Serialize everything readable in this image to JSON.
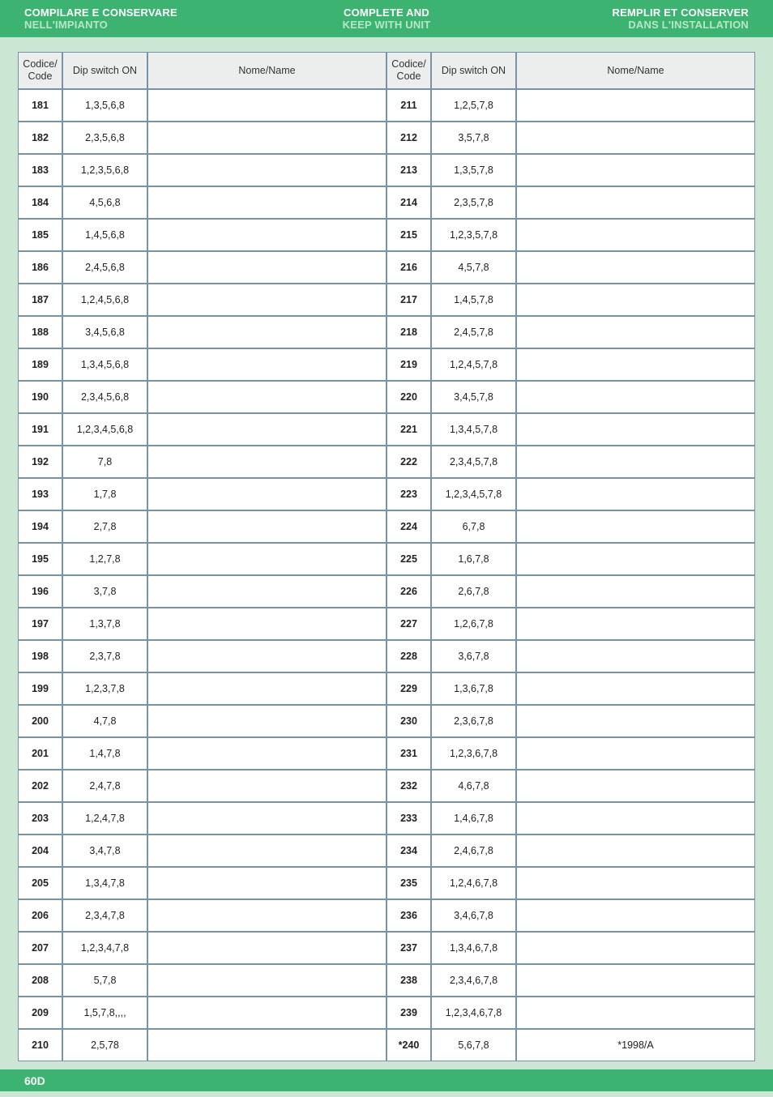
{
  "colors": {
    "page_bg": "#cbe6d3",
    "bar_bg": "#3cb371",
    "bar_text": "#ffffff",
    "bar_subtext": "#b8e6c8",
    "cell_border": "#7893a8",
    "header_bg": "#eceeee",
    "cell_bg": "#ffffff",
    "text": "#222222"
  },
  "header": {
    "left": {
      "line1": "COMPILARE E CONSERVARE",
      "line2": "NELL'IMPIANTO"
    },
    "center": {
      "line1": "COMPLETE AND",
      "line2": "KEEP WITH UNIT"
    },
    "right": {
      "line1": "REMPLIR ET CONSERVER",
      "line2": "DANS L'INSTALLATION"
    }
  },
  "columns": {
    "code": "Codice/\nCode",
    "dip": "Dip switch ON",
    "name": "Nome/Name"
  },
  "left_rows": [
    {
      "code": "181",
      "dip": "1,3,5,6,8",
      "name": ""
    },
    {
      "code": "182",
      "dip": "2,3,5,6,8",
      "name": ""
    },
    {
      "code": "183",
      "dip": "1,2,3,5,6,8",
      "name": ""
    },
    {
      "code": "184",
      "dip": "4,5,6,8",
      "name": ""
    },
    {
      "code": "185",
      "dip": "1,4,5,6,8",
      "name": ""
    },
    {
      "code": "186",
      "dip": "2,4,5,6,8",
      "name": ""
    },
    {
      "code": "187",
      "dip": "1,2,4,5,6,8",
      "name": ""
    },
    {
      "code": "188",
      "dip": "3,4,5,6,8",
      "name": ""
    },
    {
      "code": "189",
      "dip": "1,3,4,5,6,8",
      "name": ""
    },
    {
      "code": "190",
      "dip": "2,3,4,5,6,8",
      "name": ""
    },
    {
      "code": "191",
      "dip": "1,2,3,4,5,6,8",
      "name": ""
    },
    {
      "code": "192",
      "dip": "7,8",
      "name": ""
    },
    {
      "code": "193",
      "dip": "1,7,8",
      "name": ""
    },
    {
      "code": "194",
      "dip": "2,7,8",
      "name": ""
    },
    {
      "code": "195",
      "dip": "1,2,7,8",
      "name": ""
    },
    {
      "code": "196",
      "dip": "3,7,8",
      "name": ""
    },
    {
      "code": "197",
      "dip": "1,3,7,8",
      "name": ""
    },
    {
      "code": "198",
      "dip": "2,3,7,8",
      "name": ""
    },
    {
      "code": "199",
      "dip": "1,2,3,7,8",
      "name": ""
    },
    {
      "code": "200",
      "dip": "4,7,8",
      "name": ""
    },
    {
      "code": "201",
      "dip": "1,4,7,8",
      "name": ""
    },
    {
      "code": "202",
      "dip": "2,4,7,8",
      "name": ""
    },
    {
      "code": "203",
      "dip": "1,2,4,7,8",
      "name": ""
    },
    {
      "code": "204",
      "dip": "3,4,7,8",
      "name": ""
    },
    {
      "code": "205",
      "dip": "1,3,4,7,8",
      "name": ""
    },
    {
      "code": "206",
      "dip": "2,3,4,7,8",
      "name": ""
    },
    {
      "code": "207",
      "dip": "1,2,3,4,7,8",
      "name": ""
    },
    {
      "code": "208",
      "dip": "5,7,8",
      "name": ""
    },
    {
      "code": "209",
      "dip": "1,5,7,8,,,,",
      "name": ""
    },
    {
      "code": "210",
      "dip": "2,5,78",
      "name": ""
    }
  ],
  "right_rows": [
    {
      "code": "211",
      "dip": "1,2,5,7,8",
      "name": ""
    },
    {
      "code": "212",
      "dip": "3,5,7,8",
      "name": ""
    },
    {
      "code": "213",
      "dip": "1,3,5,7,8",
      "name": ""
    },
    {
      "code": "214",
      "dip": "2,3,5,7,8",
      "name": ""
    },
    {
      "code": "215",
      "dip": "1,2,3,5,7,8",
      "name": ""
    },
    {
      "code": "216",
      "dip": "4,5,7,8",
      "name": ""
    },
    {
      "code": "217",
      "dip": "1,4,5,7,8",
      "name": ""
    },
    {
      "code": "218",
      "dip": "2,4,5,7,8",
      "name": ""
    },
    {
      "code": "219",
      "dip": "1,2,4,5,7,8",
      "name": ""
    },
    {
      "code": "220",
      "dip": "3,4,5,7,8",
      "name": ""
    },
    {
      "code": "221",
      "dip": "1,3,4,5,7,8",
      "name": ""
    },
    {
      "code": "222",
      "dip": "2,3,4,5,7,8",
      "name": ""
    },
    {
      "code": "223",
      "dip": "1,2,3,4,5,7,8",
      "name": ""
    },
    {
      "code": "224",
      "dip": "6,7,8",
      "name": ""
    },
    {
      "code": "225",
      "dip": "1,6,7,8",
      "name": ""
    },
    {
      "code": "226",
      "dip": "2,6,7,8",
      "name": ""
    },
    {
      "code": "227",
      "dip": "1,2,6,7,8",
      "name": ""
    },
    {
      "code": "228",
      "dip": "3,6,7,8",
      "name": ""
    },
    {
      "code": "229",
      "dip": "1,3,6,7,8",
      "name": ""
    },
    {
      "code": "230",
      "dip": "2,3,6,7,8",
      "name": ""
    },
    {
      "code": "231",
      "dip": "1,2,3,6,7,8",
      "name": ""
    },
    {
      "code": "232",
      "dip": "4,6,7,8",
      "name": ""
    },
    {
      "code": "233",
      "dip": "1,4,6,7,8",
      "name": ""
    },
    {
      "code": "234",
      "dip": "2,4,6,7,8",
      "name": ""
    },
    {
      "code": "235",
      "dip": "1,2,4,6,7,8",
      "name": ""
    },
    {
      "code": "236",
      "dip": "3,4,6,7,8",
      "name": ""
    },
    {
      "code": "237",
      "dip": "1,3,4,6,7,8",
      "name": ""
    },
    {
      "code": "238",
      "dip": "2,3,4,6,7,8",
      "name": ""
    },
    {
      "code": "239",
      "dip": "1,2,3,4,6,7,8",
      "name": ""
    },
    {
      "code": "*240",
      "dip": "5,6,7,8",
      "name": "*1998/A"
    }
  ],
  "footer": {
    "page": "60D"
  }
}
